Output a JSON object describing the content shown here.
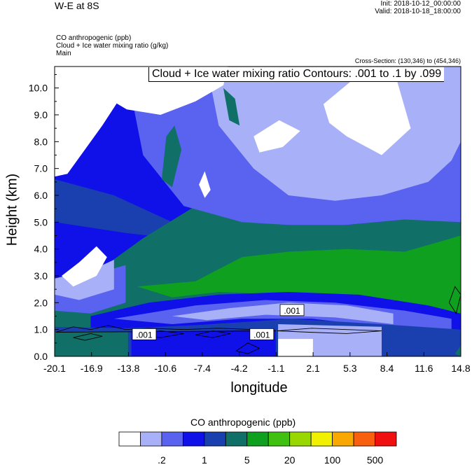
{
  "header": {
    "title": "W-E at 8S",
    "init": "Init: 2018-10-12_00:00:00",
    "valid": "Valid: 2018-10-18_18:00:00",
    "variables": [
      "CO anthropogenic   (ppb)",
      "Cloud + Ice water mixing ratio   (g/kg)",
      "Main"
    ],
    "cross_section": "Cross-Section: (130,346) to (454,346)"
  },
  "colors": [
    "#ffffff",
    "#a8b0f8",
    "#5a62f0",
    "#1010e8",
    "#1a40b0",
    "#107068",
    "#10a020",
    "#40c010",
    "#98d800",
    "#f0f000",
    "#f8a800",
    "#f86010",
    "#f01010"
  ],
  "chart_data": {
    "type": "heatmap",
    "title": "",
    "contour_title": "Cloud + Ice water mixing ratio Contours: .001 to .1 by .099",
    "xlabel": "longitude",
    "ylabel": "Height (km)",
    "xlim": [
      -20.1,
      14.8
    ],
    "ylim": [
      0.0,
      10.8
    ],
    "x_ticks": [
      "-20.1",
      "-16.9",
      "-13.8",
      "-10.6",
      "-7.4",
      "-4.2",
      "-1.1",
      "2.1",
      "5.3",
      "8.4",
      "11.6",
      "14.8"
    ],
    "y_ticks": [
      "0.0",
      "1.0",
      "2.0",
      "3.0",
      "4.0",
      "5.0",
      "6.0",
      "7.0",
      "8.0",
      "9.0",
      "10.0"
    ],
    "contour_labels": [
      {
        "text": ".001",
        "x": -12.4,
        "y": 0.8
      },
      {
        "text": ".001",
        "x": -2.3,
        "y": 0.8
      },
      {
        "text": ".001",
        "x": 0.3,
        "y": 1.7
      }
    ],
    "colorbar": {
      "title": "CO anthropogenic  (ppb)",
      "tick_labels": [
        ".2",
        "1",
        "5",
        "20",
        "100",
        "500"
      ]
    },
    "regions": [
      {
        "level": 4,
        "pts": [
          [
            -20.1,
            6.6
          ],
          [
            -15,
            6.0
          ],
          [
            -10,
            5.0
          ],
          [
            -5,
            4.6
          ],
          [
            0,
            4.5
          ],
          [
            5,
            4.4
          ],
          [
            10,
            4.6
          ],
          [
            14.8,
            4.7
          ],
          [
            14.8,
            0
          ],
          [
            -20.1,
            0
          ]
        ]
      },
      {
        "level": 3,
        "pts": [
          [
            -20.1,
            5.0
          ],
          [
            -14,
            4.6
          ],
          [
            -10,
            4.4
          ],
          [
            -5,
            4.3
          ],
          [
            0,
            4.3
          ],
          [
            5,
            4.3
          ],
          [
            10,
            4.3
          ],
          [
            14.8,
            4.4
          ],
          [
            14.8,
            0
          ],
          [
            -20.1,
            0
          ]
        ]
      },
      {
        "level": 5,
        "pts": [
          [
            -20.1,
            2.9
          ],
          [
            -16,
            3.3
          ],
          [
            -12.5,
            4.4
          ],
          [
            -8,
            5.6
          ],
          [
            -4,
            5.3
          ],
          [
            0,
            5.0
          ],
          [
            5,
            4.9
          ],
          [
            10,
            5.1
          ],
          [
            14.8,
            5.3
          ],
          [
            14.8,
            1.0
          ],
          [
            -20.1,
            1.0
          ]
        ]
      },
      {
        "level": 6,
        "pts": [
          [
            -13,
            2.6
          ],
          [
            -8,
            2.8
          ],
          [
            -4,
            3.7
          ],
          [
            0,
            3.9
          ],
          [
            5,
            4.0
          ],
          [
            10,
            3.9
          ],
          [
            14.8,
            4.5
          ],
          [
            14.8,
            1.5
          ],
          [
            8,
            2.0
          ],
          [
            0,
            2.3
          ],
          [
            -6,
            2.4
          ],
          [
            -10,
            2.2
          ]
        ]
      },
      {
        "level": 3,
        "pts": [
          [
            -17,
            1.5
          ],
          [
            -12,
            2.0
          ],
          [
            -6,
            2.3
          ],
          [
            0,
            2.4
          ],
          [
            6,
            2.3
          ],
          [
            12,
            1.9
          ],
          [
            14.8,
            1.6
          ],
          [
            14.8,
            0.9
          ],
          [
            10,
            1.0
          ],
          [
            3,
            1.3
          ],
          [
            -3,
            1.3
          ],
          [
            -10,
            1.1
          ],
          [
            -17,
            0.9
          ]
        ]
      },
      {
        "level": 2,
        "pts": [
          [
            -15,
            1.4
          ],
          [
            -8,
            1.9
          ],
          [
            -2,
            2.1
          ],
          [
            4,
            2.0
          ],
          [
            10,
            1.7
          ],
          [
            14,
            1.4
          ],
          [
            14,
            1.0
          ],
          [
            8,
            1.1
          ],
          [
            2,
            1.4
          ],
          [
            -4,
            1.4
          ],
          [
            -10,
            1.2
          ]
        ]
      },
      {
        "level": 1,
        "pts": [
          [
            -10,
            1.5
          ],
          [
            -5,
            1.8
          ],
          [
            0,
            2.0
          ],
          [
            5,
            1.9
          ],
          [
            9,
            1.6
          ],
          [
            9,
            1.2
          ],
          [
            4,
            1.45
          ],
          [
            -2,
            1.55
          ],
          [
            -7,
            1.35
          ]
        ]
      },
      {
        "level": 4,
        "pts": [
          [
            -20.1,
            0
          ],
          [
            -20.1,
            1.1
          ],
          [
            -14,
            1.05
          ],
          [
            -6,
            1.2
          ],
          [
            0,
            1.4
          ],
          [
            8,
            1.2
          ],
          [
            14.8,
            1.0
          ],
          [
            14.8,
            0
          ]
        ]
      },
      {
        "level": 3,
        "pts": [
          [
            -13.5,
            0
          ],
          [
            -13.5,
            0.9
          ],
          [
            -1.1,
            1.0
          ],
          [
            -1.1,
            0
          ]
        ]
      },
      {
        "level": 1,
        "pts": [
          [
            -0.9,
            0
          ],
          [
            -0.9,
            1.2
          ],
          [
            8,
            1.1
          ],
          [
            8,
            0
          ]
        ]
      },
      {
        "level": 0,
        "pts": [
          [
            -0.9,
            0
          ],
          [
            -0.9,
            0.65
          ],
          [
            2.1,
            0.65
          ],
          [
            2.1,
            0
          ]
        ]
      },
      {
        "level": 5,
        "pts": [
          [
            -20.1,
            0
          ],
          [
            -20.1,
            0.9
          ],
          [
            -13.8,
            0.9
          ],
          [
            -13.8,
            0
          ]
        ]
      },
      {
        "level": 2,
        "pts": [
          [
            -20.1,
            2.6
          ],
          [
            -16.5,
            3.1
          ],
          [
            -14,
            3.4
          ],
          [
            -14,
            2.0
          ],
          [
            -17,
            1.6
          ],
          [
            -20.1,
            1.7
          ]
        ]
      },
      {
        "level": 1,
        "pts": [
          [
            -20.1,
            2.9
          ],
          [
            -17,
            3.2
          ],
          [
            -15,
            3.6
          ],
          [
            -15,
            2.5
          ],
          [
            -18,
            2.1
          ],
          [
            -20.1,
            2.3
          ]
        ]
      },
      {
        "level": 0,
        "pts": [
          [
            -19.5,
            3.0
          ],
          [
            -18,
            3.5
          ],
          [
            -16.5,
            4.1
          ],
          [
            -15.6,
            3.7
          ],
          [
            -16.5,
            3.0
          ],
          [
            -18.5,
            2.6
          ]
        ]
      },
      {
        "level": 2,
        "pts": [
          [
            -20.1,
            10.8
          ],
          [
            -14,
            10.8
          ],
          [
            -12.5,
            7.5
          ],
          [
            -9,
            5.6
          ],
          [
            -4,
            5.0
          ],
          [
            0,
            4.9
          ],
          [
            5,
            4.9
          ],
          [
            10,
            5.1
          ],
          [
            14.8,
            5.0
          ],
          [
            14.8,
            10.8
          ]
        ]
      },
      {
        "level": 1,
        "pts": [
          [
            -7,
            10.8
          ],
          [
            -6,
            8.6
          ],
          [
            -3,
            7.0
          ],
          [
            0,
            6.0
          ],
          [
            4,
            5.8
          ],
          [
            8,
            6.0
          ],
          [
            12,
            6.5
          ],
          [
            14,
            7.3
          ],
          [
            14.8,
            8.0
          ],
          [
            14.8,
            10.8
          ]
        ]
      },
      {
        "level": 0,
        "pts": [
          [
            -20.1,
            10.8
          ],
          [
            -14.4,
            10.8
          ],
          [
            -14.2,
            9.8
          ],
          [
            -16,
            8.6
          ],
          [
            -19,
            6.8
          ],
          [
            -20.1,
            6.7
          ]
        ]
      },
      {
        "level": 0,
        "pts": [
          [
            -20.1,
            10.8
          ],
          [
            -5.2,
            10.8
          ],
          [
            -5.6,
            10.1
          ],
          [
            -8,
            9.5
          ],
          [
            -11,
            9.0
          ],
          [
            -13.9,
            9.2
          ]
        ]
      },
      {
        "level": 0,
        "pts": [
          [
            3.0,
            9.4
          ],
          [
            5.5,
            10.3
          ],
          [
            9.3,
            10.3
          ],
          [
            10.5,
            8.5
          ],
          [
            8,
            7.5
          ],
          [
            5,
            8.2
          ],
          [
            3.5,
            8.7
          ]
        ]
      },
      {
        "level": 0,
        "pts": [
          [
            -3,
            8.2
          ],
          [
            -0.8,
            8.8
          ],
          [
            1,
            8.4
          ],
          [
            -0.5,
            7.8
          ],
          [
            -2.5,
            7.6
          ]
        ]
      },
      {
        "level": 0,
        "pts": [
          [
            -7.7,
            6.4
          ],
          [
            -7.2,
            6.9
          ],
          [
            -6.7,
            6.2
          ],
          [
            -7.2,
            5.9
          ]
        ]
      },
      {
        "level": 5,
        "pts": [
          [
            -5.6,
            10.0
          ],
          [
            -5.1,
            8.8
          ],
          [
            -4.2,
            8.6
          ],
          [
            -4.6,
            9.6
          ]
        ]
      },
      {
        "level": 5,
        "pts": [
          [
            -10.9,
            6.6
          ],
          [
            -10.5,
            8.2
          ],
          [
            -9.8,
            8.6
          ],
          [
            -9.2,
            7.7
          ],
          [
            -10.0,
            6.3
          ]
        ]
      },
      {
        "level": 5,
        "pts": [
          [
            14.3,
            0.1
          ],
          [
            14.8,
            0.4
          ],
          [
            14.8,
            0.0
          ]
        ]
      }
    ]
  }
}
